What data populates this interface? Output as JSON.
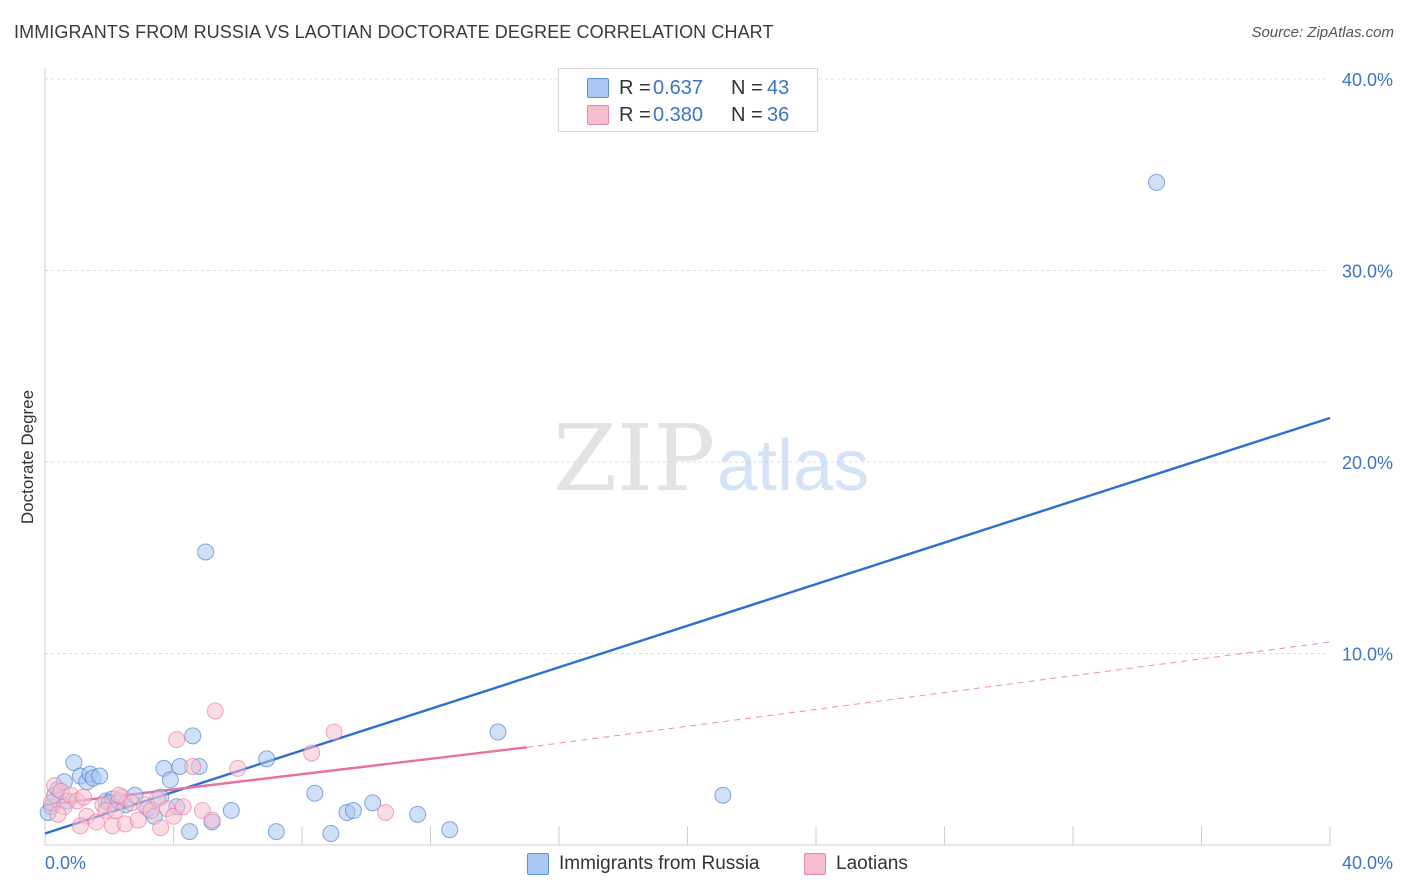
{
  "title": "IMMIGRANTS FROM RUSSIA VS LAOTIAN DOCTORATE DEGREE CORRELATION CHART",
  "source": "Source: ZipAtlas.com",
  "watermark": {
    "zip": "ZIP",
    "atlas": "atlas"
  },
  "legend": {
    "rows": [
      {
        "r_label": "R =",
        "r_value": "0.637",
        "n_label": "N =",
        "n_value": "43",
        "color": "#a9c7f0",
        "border": "#5b8fd6"
      },
      {
        "r_label": "R =",
        "r_value": "0.380",
        "n_label": "N =",
        "n_value": "36",
        "color": "#f6bfd0",
        "border": "#e889a8"
      }
    ]
  },
  "bottom_legend": [
    {
      "label": "Immigrants from Russia",
      "color": "#a9c7f0",
      "border": "#5b8fd6"
    },
    {
      "label": "Laotians",
      "color": "#f6bfd0",
      "border": "#e889a8"
    }
  ],
  "chart_data": {
    "type": "scatter",
    "title": "IMMIGRANTS FROM RUSSIA VS LAOTIAN DOCTORATE DEGREE CORRELATION CHART",
    "xlabel": "",
    "ylabel": "Doctorate Degree",
    "xlim": [
      0,
      40
    ],
    "ylim": [
      0,
      40
    ],
    "x_tick_labels": [
      "0.0%",
      "40.0%"
    ],
    "y_tick_labels": [
      "10.0%",
      "20.0%",
      "30.0%",
      "40.0%"
    ],
    "y_ticks": [
      10,
      20,
      30,
      40
    ],
    "grid": true,
    "legend_position": "top-center",
    "series": [
      {
        "name": "Immigrants from Russia",
        "color": "#3b74c9",
        "fill": "#a9c7f0",
        "points": [
          [
            0.2,
            2.0
          ],
          [
            0.3,
            2.6
          ],
          [
            0.4,
            2.9
          ],
          [
            0.6,
            3.3
          ],
          [
            0.7,
            2.3
          ],
          [
            0.9,
            4.3
          ],
          [
            1.1,
            3.6
          ],
          [
            1.3,
            3.3
          ],
          [
            1.4,
            3.7
          ],
          [
            1.5,
            3.5
          ],
          [
            1.7,
            3.6
          ],
          [
            1.9,
            2.3
          ],
          [
            2.1,
            2.4
          ],
          [
            2.3,
            2.3
          ],
          [
            2.5,
            2.1
          ],
          [
            2.8,
            2.6
          ],
          [
            3.2,
            1.9
          ],
          [
            3.4,
            1.5
          ],
          [
            3.6,
            2.5
          ],
          [
            3.7,
            4.0
          ],
          [
            3.9,
            3.4
          ],
          [
            4.1,
            2.0
          ],
          [
            4.2,
            4.1
          ],
          [
            4.5,
            0.7
          ],
          [
            4.6,
            5.7
          ],
          [
            4.8,
            4.1
          ],
          [
            5.0,
            15.3
          ],
          [
            5.2,
            1.2
          ],
          [
            5.8,
            1.8
          ],
          [
            6.9,
            4.5
          ],
          [
            7.2,
            0.7
          ],
          [
            8.4,
            2.7
          ],
          [
            8.9,
            0.6
          ],
          [
            9.4,
            1.7
          ],
          [
            9.6,
            1.8
          ],
          [
            10.2,
            2.2
          ],
          [
            11.6,
            1.6
          ],
          [
            12.6,
            0.8
          ],
          [
            14.1,
            5.9
          ],
          [
            21.1,
            2.6
          ],
          [
            34.6,
            34.6
          ],
          [
            0.1,
            1.7
          ],
          [
            2.0,
            2.2
          ]
        ]
      },
      {
        "name": "Laotians",
        "color": "#e8739a",
        "fill": "#f6bfd0",
        "points": [
          [
            0.2,
            2.2
          ],
          [
            0.3,
            3.1
          ],
          [
            0.5,
            2.8
          ],
          [
            0.6,
            2.0
          ],
          [
            0.8,
            2.6
          ],
          [
            1.0,
            2.3
          ],
          [
            1.2,
            2.5
          ],
          [
            1.3,
            1.5
          ],
          [
            1.6,
            1.2
          ],
          [
            1.8,
            2.1
          ],
          [
            1.9,
            1.8
          ],
          [
            2.1,
            1.0
          ],
          [
            2.2,
            1.8
          ],
          [
            2.4,
            2.5
          ],
          [
            2.5,
            1.1
          ],
          [
            2.7,
            2.2
          ],
          [
            2.9,
            1.3
          ],
          [
            3.1,
            2.1
          ],
          [
            3.3,
            1.8
          ],
          [
            3.5,
            2.4
          ],
          [
            3.6,
            0.9
          ],
          [
            3.8,
            1.9
          ],
          [
            4.0,
            1.5
          ],
          [
            4.1,
            5.5
          ],
          [
            4.3,
            2.0
          ],
          [
            4.6,
            4.1
          ],
          [
            4.9,
            1.8
          ],
          [
            5.2,
            1.3
          ],
          [
            5.3,
            7.0
          ],
          [
            6.0,
            4.0
          ],
          [
            8.3,
            4.8
          ],
          [
            9.0,
            5.9
          ],
          [
            10.6,
            1.7
          ],
          [
            1.1,
            1.0
          ],
          [
            2.3,
            2.6
          ],
          [
            0.4,
            1.6
          ]
        ]
      }
    ],
    "trendlines": [
      {
        "series": "Immigrants from Russia",
        "x": [
          0,
          40
        ],
        "y": [
          0.6,
          22.3
        ],
        "style": "solid"
      },
      {
        "series": "Laotians",
        "x": [
          0,
          15
        ],
        "y": [
          2.1,
          5.1
        ],
        "style": "solid"
      },
      {
        "series": "Laotians",
        "x": [
          15,
          40
        ],
        "y": [
          5.1,
          10.6
        ],
        "style": "dashed"
      }
    ]
  }
}
